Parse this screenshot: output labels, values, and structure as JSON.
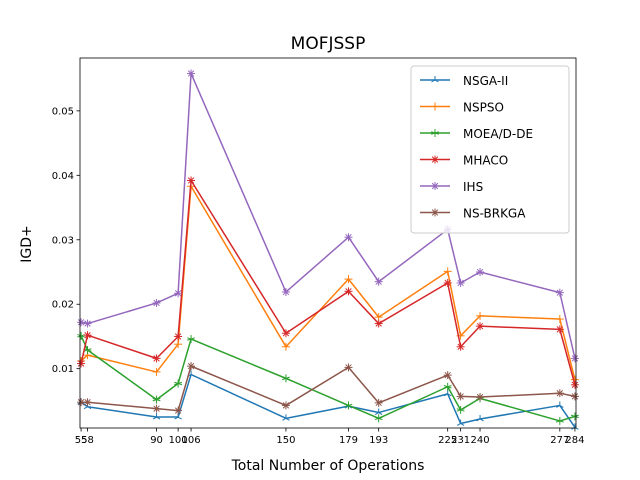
{
  "chart_data": {
    "type": "line",
    "title": "MOFJSSP",
    "xlabel": "Total Number of Operations",
    "ylabel": "IGD+",
    "x": [
      55,
      58,
      90,
      100,
      106,
      150,
      179,
      193,
      225,
      231,
      240,
      277,
      284
    ],
    "x_tick_labels": [
      "55",
      "58",
      "90",
      "100",
      "106",
      "150",
      "179",
      "193",
      "225",
      "231",
      "240",
      "277",
      "284"
    ],
    "xlim": [
      54.5,
      284.5
    ],
    "ylim": [
      0.0008,
      0.0582
    ],
    "y_ticks": [
      0.01,
      0.02,
      0.03,
      0.04,
      0.05
    ],
    "y_tick_labels": [
      "0.01",
      "0.02",
      "0.03",
      "0.04",
      "0.05"
    ],
    "grid": false,
    "legend_position": "top-right",
    "series": [
      {
        "name": "NSGA-II",
        "color": "#1f77b4",
        "marker": "tri-star",
        "values": [
          0.0048,
          0.0041,
          0.0025,
          0.0025,
          0.0091,
          0.0023,
          0.0042,
          0.0032,
          0.0061,
          0.0015,
          0.0022,
          0.0043,
          0.0009
        ]
      },
      {
        "name": "NSPSO",
        "color": "#ff7f0e",
        "marker": "plus",
        "values": [
          0.0112,
          0.0121,
          0.0095,
          0.0138,
          0.0383,
          0.0134,
          0.0239,
          0.018,
          0.0251,
          0.0151,
          0.0182,
          0.0177,
          0.0083
        ]
      },
      {
        "name": "MOEA/D-DE",
        "color": "#2ca02c",
        "marker": "star",
        "values": [
          0.0151,
          0.0129,
          0.0052,
          0.0077,
          0.0146,
          0.0085,
          0.0043,
          0.0023,
          0.0072,
          0.0036,
          0.0054,
          0.0019,
          0.0026
        ]
      },
      {
        "name": "MHACO",
        "color": "#d62728",
        "marker": "asterisk",
        "values": [
          0.0108,
          0.0152,
          0.0116,
          0.015,
          0.0392,
          0.0155,
          0.022,
          0.017,
          0.0233,
          0.0134,
          0.0166,
          0.0161,
          0.0075
        ]
      },
      {
        "name": "IHS",
        "color": "#9467bd",
        "marker": "asterisk",
        "values": [
          0.0172,
          0.017,
          0.0202,
          0.0217,
          0.0558,
          0.0219,
          0.0304,
          0.0235,
          0.0316,
          0.0233,
          0.025,
          0.0218,
          0.0116
        ]
      },
      {
        "name": "NS-BRKGA",
        "color": "#8c564b",
        "marker": "asterisk",
        "values": [
          0.0048,
          0.0048,
          0.0038,
          0.0035,
          0.0104,
          0.0043,
          0.0102,
          0.0047,
          0.009,
          0.0057,
          0.0056,
          0.0062,
          0.0057
        ]
      }
    ]
  }
}
